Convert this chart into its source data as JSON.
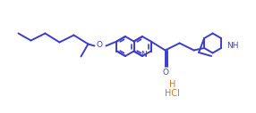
{
  "bg_color": "#ffffff",
  "line_color": "#3d3dcc",
  "hcl_color": "#cc7722",
  "line_width": 1.4,
  "figsize": [
    2.86,
    1.27
  ],
  "dpi": 100,
  "N_label": "N",
  "O_label": "O",
  "NH_label": "NH",
  "HCl_H": "H",
  "HCl_label": "HCl"
}
